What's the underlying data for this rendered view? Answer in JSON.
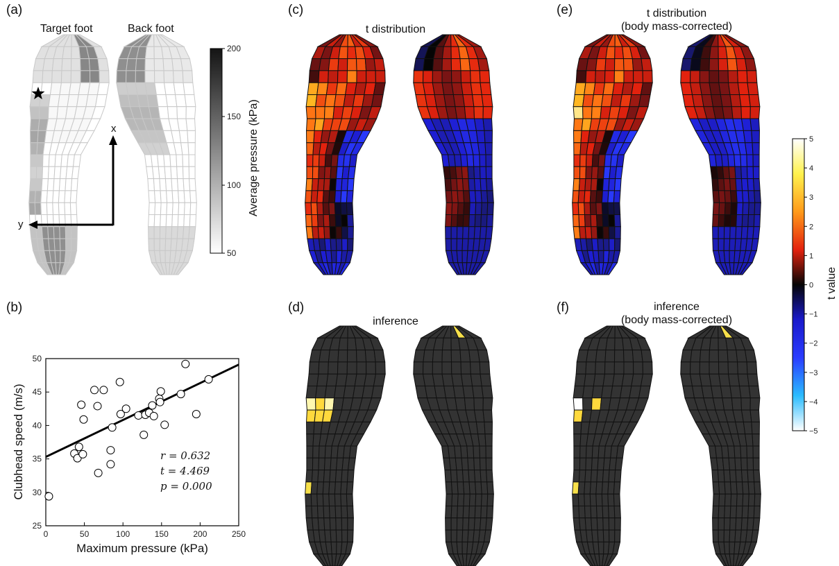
{
  "panels": {
    "a": "(a)",
    "b": "(b)",
    "c": "(c)",
    "d": "(d)",
    "e": "(e)",
    "f": "(f)"
  },
  "panel_a": {
    "target_foot_label": "Target foot",
    "back_foot_label": "Back foot",
    "axis_x_label": "x",
    "axis_y_label": "y",
    "colorbar_label": "Average pressure (kPa)",
    "colorbar_ticks": [
      "200",
      "150",
      "100",
      "50"
    ]
  },
  "panel_c": {
    "title": "t distribution"
  },
  "panel_d": {
    "title": "inference"
  },
  "panel_e": {
    "title_line1": "t distribution",
    "title_line2": "(body mass-corrected)"
  },
  "panel_f": {
    "title_line1": "inference",
    "title_line2": "(body mass-corrected)"
  },
  "t_colorbar": {
    "label": "t value",
    "ticks": [
      "5",
      "4",
      "3",
      "2",
      "1",
      "0",
      "−1",
      "−2",
      "−3",
      "−4",
      "−5"
    ]
  },
  "chart_data": {
    "type": "scatter",
    "xlabel": "Maximum pressure (kPa)",
    "ylabel": "Clubhead speed (m/s)",
    "xlim": [
      0,
      250
    ],
    "ylim": [
      25,
      50
    ],
    "xticks": [
      "0",
      "50",
      "100",
      "150",
      "200",
      "250"
    ],
    "yticks": [
      "25",
      "30",
      "35",
      "40",
      "45",
      "50"
    ],
    "points": [
      [
        4,
        29.4
      ],
      [
        37,
        35.8
      ],
      [
        41,
        35.1
      ],
      [
        43,
        36.8
      ],
      [
        46,
        43.1
      ],
      [
        48,
        35.7
      ],
      [
        49,
        40.9
      ],
      [
        63,
        45.3
      ],
      [
        67,
        42.9
      ],
      [
        68,
        32.9
      ],
      [
        75,
        45.3
      ],
      [
        84,
        36.3
      ],
      [
        84,
        34.2
      ],
      [
        86,
        39.7
      ],
      [
        96,
        46.5
      ],
      [
        97,
        41.7
      ],
      [
        104,
        42.5
      ],
      [
        120,
        41.5
      ],
      [
        127,
        38.6
      ],
      [
        129,
        41.6
      ],
      [
        134,
        41.9
      ],
      [
        138,
        43.0
      ],
      [
        140,
        41.4
      ],
      [
        147,
        44.0
      ],
      [
        148,
        43.5
      ],
      [
        149,
        45.1
      ],
      [
        154,
        40.1
      ],
      [
        175,
        44.7
      ],
      [
        181,
        49.2
      ],
      [
        195,
        41.7
      ],
      [
        211,
        46.9
      ]
    ],
    "fit_line": {
      "x": [
        0,
        250
      ],
      "y": [
        35.3,
        49.1
      ]
    },
    "annotations": [
      "r = 0.632",
      "t = 4.469",
      "p = 0.000"
    ]
  }
}
